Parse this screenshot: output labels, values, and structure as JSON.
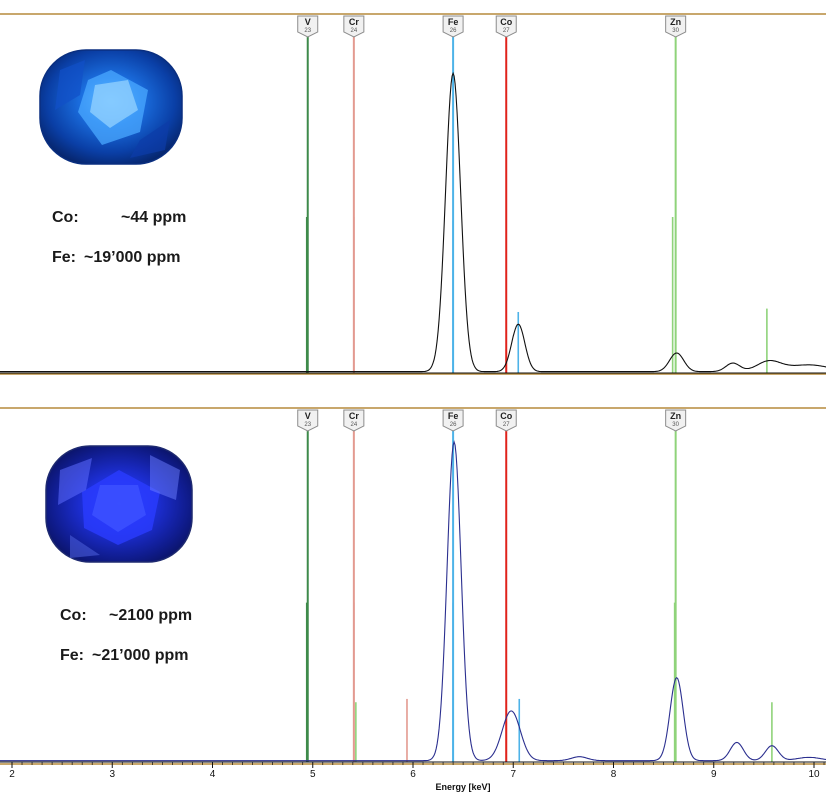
{
  "colors": {
    "frame": "#b58a3c",
    "V": "#3e8a4a",
    "Cr": "#e39a90",
    "Fe": "#4db3e8",
    "Co": "#e0221b",
    "Zn": "#8fd37a",
    "spectrum_top": "#111111",
    "spectrum_bottom": "#2b2f8f"
  },
  "chart_data": [
    {
      "type": "line",
      "panel": "top",
      "gem": {
        "co_label": "Co:",
        "co_value": "~44 ppm",
        "fe_label": "Fe:",
        "fe_value": "~19’000 ppm"
      },
      "xlim": [
        1.8,
        10.15
      ],
      "ylim": [
        0,
        1
      ],
      "xlabel": "",
      "element_markers": [
        {
          "symbol": "V",
          "z": "23",
          "energy": 4.95,
          "color": "#3e8a4a"
        },
        {
          "symbol": "Cr",
          "z": "24",
          "energy": 5.41,
          "color": "#e39a90"
        },
        {
          "symbol": "Fe",
          "z": "26",
          "energy": 6.4,
          "color": "#4db3e8"
        },
        {
          "symbol": "Co",
          "z": "27",
          "energy": 6.93,
          "color": "#e0221b"
        },
        {
          "symbol": "Zn",
          "z": "30",
          "energy": 8.62,
          "color": "#8fd37a"
        }
      ],
      "marker_lines": [
        {
          "energy": 4.94,
          "height": 0.46,
          "color": "#3e8a4a"
        },
        {
          "energy": 5.41,
          "height": 0.46,
          "color": "#e39a90"
        },
        {
          "energy": 6.4,
          "height": 0.45,
          "color": "#4db3e8"
        },
        {
          "energy": 6.93,
          "height": 0.07,
          "color": "#e0221b"
        },
        {
          "energy": 7.05,
          "height": 0.18,
          "color": "#4db3e8"
        },
        {
          "energy": 8.59,
          "height": 0.46,
          "color": "#8fd37a"
        },
        {
          "energy": 9.53,
          "height": 0.19,
          "color": "#8fd37a"
        }
      ],
      "peaks": [
        {
          "center": 6.4,
          "height": 0.88,
          "width": 0.075
        },
        {
          "center": 7.05,
          "height": 0.14,
          "width": 0.065
        },
        {
          "center": 8.63,
          "height": 0.055,
          "width": 0.07
        },
        {
          "center": 9.19,
          "height": 0.025,
          "width": 0.07
        },
        {
          "center": 9.55,
          "height": 0.03,
          "width": 0.12
        },
        {
          "center": 9.95,
          "height": 0.02,
          "width": 0.2
        }
      ]
    },
    {
      "type": "line",
      "panel": "bottom",
      "gem": {
        "co_label": "Co:",
        "co_value": "~2100 ppm",
        "fe_label": "Fe:",
        "fe_value": "~21’000 ppm"
      },
      "xlim": [
        1.8,
        10.15
      ],
      "ylim": [
        0,
        1
      ],
      "xlabel": "Energy [keV]",
      "x_ticks": [
        2,
        3,
        4,
        5,
        6,
        7,
        8,
        9,
        10
      ],
      "element_markers": [
        {
          "symbol": "V",
          "z": "23",
          "energy": 4.95,
          "color": "#3e8a4a"
        },
        {
          "symbol": "Cr",
          "z": "24",
          "energy": 5.41,
          "color": "#e39a90"
        },
        {
          "symbol": "Fe",
          "z": "26",
          "energy": 6.4,
          "color": "#4db3e8"
        },
        {
          "symbol": "Co",
          "z": "27",
          "energy": 6.93,
          "color": "#e0221b"
        },
        {
          "symbol": "Zn",
          "z": "30",
          "energy": 8.62,
          "color": "#8fd37a"
        }
      ],
      "marker_lines": [
        {
          "energy": 4.94,
          "height": 0.48,
          "color": "#3e8a4a"
        },
        {
          "energy": 5.41,
          "height": 0.48,
          "color": "#e39a90"
        },
        {
          "energy": 5.43,
          "height": 0.18,
          "color": "#8fd37a"
        },
        {
          "energy": 5.94,
          "height": 0.19,
          "color": "#e39a90"
        },
        {
          "energy": 6.4,
          "height": 0.48,
          "color": "#4db3e8"
        },
        {
          "energy": 6.93,
          "height": 0.12,
          "color": "#e0221b"
        },
        {
          "energy": 7.06,
          "height": 0.19,
          "color": "#4db3e8"
        },
        {
          "energy": 8.61,
          "height": 0.48,
          "color": "#8fd37a"
        },
        {
          "energy": 9.58,
          "height": 0.18,
          "color": "#8fd37a"
        }
      ],
      "peaks": [
        {
          "center": 6.41,
          "height": 0.96,
          "width": 0.07
        },
        {
          "center": 6.98,
          "height": 0.15,
          "width": 0.09
        },
        {
          "center": 7.66,
          "height": 0.012,
          "width": 0.08
        },
        {
          "center": 8.63,
          "height": 0.25,
          "width": 0.065
        },
        {
          "center": 9.23,
          "height": 0.055,
          "width": 0.065
        },
        {
          "center": 9.58,
          "height": 0.045,
          "width": 0.065
        },
        {
          "center": 9.95,
          "height": 0.01,
          "width": 0.12
        }
      ]
    }
  ]
}
